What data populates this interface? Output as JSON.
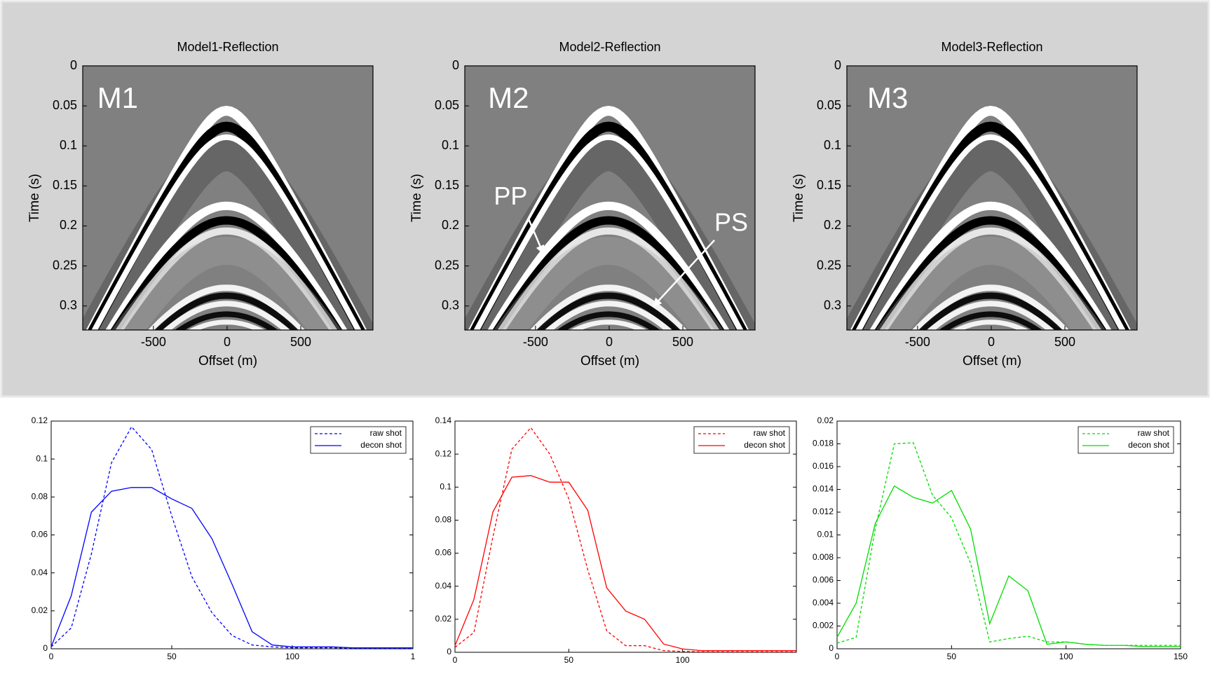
{
  "chart_data": [
    {
      "type": "image",
      "title": "Model1-Reflection",
      "xlabel": "Offset (m)",
      "ylabel": "Time (s)",
      "xlim": [
        -980,
        990
      ],
      "xticks": [
        -500,
        0,
        500
      ],
      "ylim": [
        0,
        0.33
      ],
      "yticks": [
        0,
        0.05,
        0.1,
        0.15,
        0.2,
        0.25,
        0.3
      ],
      "y_inverted": true,
      "annotations": [
        "M1"
      ]
    },
    {
      "type": "image",
      "title": "Model2-Reflection",
      "xlabel": "Offset (m)",
      "ylabel": "Time (s)",
      "xlim": [
        -980,
        990
      ],
      "xticks": [
        -500,
        0,
        500
      ],
      "ylim": [
        0,
        0.33
      ],
      "yticks": [
        0,
        0.05,
        0.1,
        0.15,
        0.2,
        0.25,
        0.3
      ],
      "y_inverted": true,
      "annotations": [
        "M2",
        "PP",
        "PS"
      ]
    },
    {
      "type": "image",
      "title": "Model3-Reflection",
      "xlabel": "Offset (m)",
      "ylabel": "Time (s)",
      "xlim": [
        -980,
        990
      ],
      "xticks": [
        -500,
        0,
        500
      ],
      "ylim": [
        0,
        0.33
      ],
      "yticks": [
        0,
        0.05,
        0.1,
        0.15,
        0.2,
        0.25,
        0.3
      ],
      "y_inverted": true,
      "annotations": [
        "M3"
      ]
    },
    {
      "type": "line",
      "x": [
        0,
        8.33,
        16.67,
        25,
        33.33,
        41.67,
        50,
        58.33,
        66.67,
        75,
        83.33,
        91.67,
        100,
        108.33,
        116.67,
        125,
        133.33,
        141.67,
        150
      ],
      "xlim": [
        0,
        150
      ],
      "xticks": [
        0,
        50,
        100,
        {
          "value": 150,
          "label": "1"
        }
      ],
      "ylim": [
        0,
        0.12
      ],
      "yticks": [
        0,
        0.02,
        0.04,
        0.06,
        0.08,
        0.1,
        0.12
      ],
      "legend": "upper-right",
      "series": [
        {
          "name": "raw shot",
          "color": "#0000ff",
          "linestyle": "dashed",
          "values": [
            0.001,
            0.011,
            0.05,
            0.098,
            0.117,
            0.105,
            0.07,
            0.038,
            0.019,
            0.007,
            0.002,
            0.001,
            0.0005,
            0.0005,
            0.0005,
            0.0003,
            0.0003,
            0.0003,
            0.0003
          ]
        },
        {
          "name": "decon shot",
          "color": "#0000ff",
          "linestyle": "solid",
          "values": [
            0.001,
            0.028,
            0.072,
            0.083,
            0.085,
            0.085,
            0.079,
            0.074,
            0.058,
            0.034,
            0.009,
            0.002,
            0.001,
            0.001,
            0.001,
            0.0005,
            0.0005,
            0.0005,
            0.0005
          ]
        }
      ]
    },
    {
      "type": "line",
      "x": [
        0,
        8.33,
        16.67,
        25,
        33.33,
        41.67,
        50,
        58.33,
        66.67,
        75,
        83.33,
        91.67,
        100,
        108.33,
        116.67,
        125,
        133.33,
        141.67,
        150
      ],
      "xlim": [
        0,
        150
      ],
      "xticks": [
        0,
        50,
        100
      ],
      "ylim": [
        0,
        0.14
      ],
      "yticks": [
        0,
        0.02,
        0.04,
        0.06,
        0.08,
        0.1,
        0.12,
        0.14
      ],
      "legend": "upper-right",
      "series": [
        {
          "name": "raw shot",
          "color": "#ff0000",
          "linestyle": "dashed",
          "values": [
            0.003,
            0.012,
            0.07,
            0.123,
            0.136,
            0.12,
            0.093,
            0.05,
            0.013,
            0.004,
            0.004,
            0.001,
            0.0005,
            0.0003,
            0.0003,
            0.0003,
            0.0003,
            0.0003,
            0.0003
          ]
        },
        {
          "name": "decon shot",
          "color": "#ff0000",
          "linestyle": "solid",
          "values": [
            0.004,
            0.032,
            0.085,
            0.106,
            0.107,
            0.103,
            0.103,
            0.086,
            0.039,
            0.025,
            0.02,
            0.005,
            0.002,
            0.001,
            0.001,
            0.001,
            0.001,
            0.001,
            0.001
          ]
        }
      ]
    },
    {
      "type": "line",
      "x": [
        0,
        8.33,
        16.67,
        25,
        33.33,
        41.67,
        50,
        58.33,
        66.67,
        75,
        83.33,
        91.67,
        100,
        108.33,
        116.67,
        125,
        133.33,
        141.67,
        150
      ],
      "xlim": [
        0,
        150
      ],
      "xticks": [
        0,
        50,
        100,
        150
      ],
      "ylim": [
        0,
        0.02
      ],
      "yticks": [
        0,
        0.002,
        0.004,
        0.006,
        0.008,
        0.01,
        0.012,
        0.014,
        0.016,
        0.018,
        0.02
      ],
      "legend": "upper-right",
      "series": [
        {
          "name": "raw shot",
          "color": "#00dd00",
          "linestyle": "dashed",
          "values": [
            0.0005,
            0.001,
            0.0105,
            0.018,
            0.0181,
            0.0135,
            0.0115,
            0.0075,
            0.0006,
            0.0009,
            0.0011,
            0.0006,
            0.0006,
            0.0004,
            0.0003,
            0.0003,
            0.0003,
            0.0003,
            0.0003
          ]
        },
        {
          "name": "decon shot",
          "color": "#00dd00",
          "linestyle": "solid",
          "values": [
            0.001,
            0.004,
            0.011,
            0.0143,
            0.0133,
            0.0128,
            0.0139,
            0.0105,
            0.0022,
            0.0064,
            0.0051,
            0.0004,
            0.0006,
            0.0004,
            0.0003,
            0.0003,
            0.0002,
            0.0002,
            0.0002
          ]
        }
      ]
    }
  ]
}
